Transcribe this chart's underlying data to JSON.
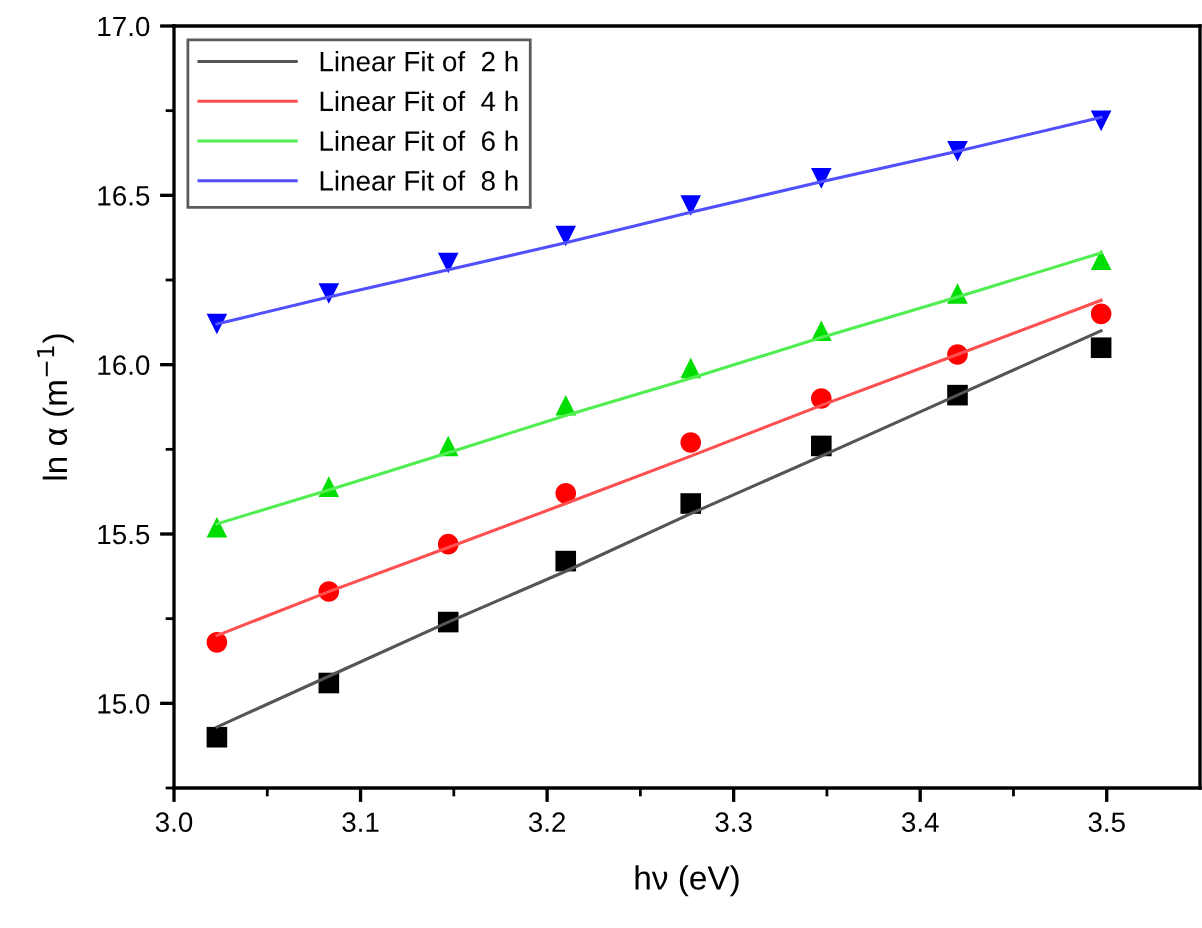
{
  "chart_data": {
    "type": "scatter",
    "xlabel": "hν (eV)",
    "ylabel": "ln α (m$^{−1}$)",
    "xlim": [
      3.0,
      3.55
    ],
    "ylim": [
      14.75,
      17.0
    ],
    "xticks": [
      {
        "value": 3.0,
        "label": "3.0"
      },
      {
        "value": 3.05,
        "label": null
      },
      3.1,
      {
        "value": 3.15,
        "label": null
      },
      3.2,
      {
        "value": 3.25,
        "label": null
      },
      3.3,
      {
        "value": 3.35,
        "label": null
      },
      3.4,
      {
        "value": 3.45,
        "label": null
      },
      3.5
    ],
    "yticks": [
      {
        "value": 14.75,
        "label": null
      },
      {
        "value": 15.0,
        "label": "15.0"
      },
      {
        "value": 15.25,
        "label": null
      },
      15.5,
      {
        "value": 15.75,
        "label": null
      },
      {
        "value": 16.0,
        "label": "16.0"
      },
      {
        "value": 16.25,
        "label": null
      },
      16.5,
      {
        "value": 16.75,
        "label": null
      },
      {
        "value": 17.0,
        "label": "17.0"
      }
    ],
    "grid": false,
    "legend": "top left",
    "x": [
      3.023,
      3.083,
      3.147,
      3.21,
      3.277,
      3.347,
      3.42,
      3.497
    ],
    "series": [
      {
        "color": "#000000",
        "marker": "square",
        "values": [
          14.9,
          15.06,
          15.24,
          15.42,
          15.59,
          15.76,
          15.91,
          16.05
        ]
      },
      {
        "color": "#ff0000",
        "marker": "circle",
        "values": [
          15.18,
          15.33,
          15.47,
          15.62,
          15.77,
          15.9,
          16.03,
          16.15
        ]
      },
      {
        "color": "#00dd00",
        "marker": "triangle",
        "values": [
          15.52,
          15.64,
          15.76,
          15.88,
          15.99,
          16.1,
          16.21,
          16.31
        ]
      },
      {
        "color": "#0000ff",
        "marker": "triangle_down",
        "values": [
          16.12,
          16.21,
          16.3,
          16.38,
          16.47,
          16.55,
          16.63,
          16.72
        ]
      },
      {
        "type": "line",
        "name": "Linear Fit of  2 h",
        "color": "#555555",
        "values": [
          14.93,
          15.08,
          15.24,
          15.39,
          15.56,
          15.73,
          15.91,
          16.1
        ]
      },
      {
        "type": "line",
        "name": "Linear Fit of  4 h",
        "color": "#ff5050",
        "values": [
          15.2,
          15.33,
          15.46,
          15.59,
          15.73,
          15.88,
          16.03,
          16.19
        ]
      },
      {
        "type": "line",
        "name": "Linear Fit of  6 h",
        "color": "#50ee50",
        "values": [
          15.53,
          15.63,
          15.74,
          15.85,
          15.96,
          16.08,
          16.2,
          16.33
        ]
      },
      {
        "type": "line",
        "name": "Linear Fit of  8 h",
        "color": "#5050ff",
        "values": [
          16.12,
          16.2,
          16.28,
          16.36,
          16.45,
          16.54,
          16.63,
          16.73
        ]
      }
    ]
  }
}
